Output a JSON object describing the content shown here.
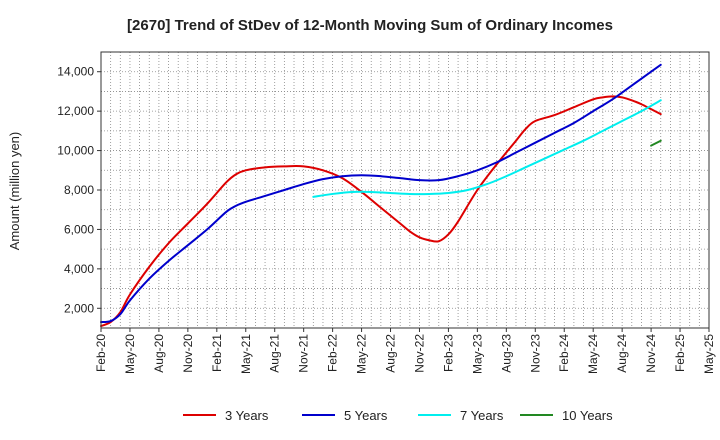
{
  "chart_data": {
    "type": "line",
    "title": "[2670]  Trend of StDev of 12-Month Moving Sum of Ordinary Incomes",
    "xlabel": "",
    "ylabel": "Amount (million yen)",
    "ylim": [
      1000,
      15000
    ],
    "yticks": [
      2000,
      4000,
      6000,
      8000,
      10000,
      12000,
      14000
    ],
    "ytick_labels": [
      "2,000",
      "4,000",
      "6,000",
      "8,000",
      "10,000",
      "12,000",
      "14,000"
    ],
    "x_start": "Feb-20",
    "x_months": 63,
    "xtick_labels": [
      "Feb-20",
      "May-20",
      "Aug-20",
      "Nov-20",
      "Feb-21",
      "May-21",
      "Aug-21",
      "Nov-21",
      "Feb-22",
      "May-22",
      "Aug-22",
      "Nov-22",
      "Feb-23",
      "May-23",
      "Aug-23",
      "Nov-23",
      "Feb-24",
      "May-24",
      "Aug-24",
      "Nov-24",
      "Feb-25",
      "May-25"
    ],
    "grid": true,
    "legend_position": "bottom",
    "series": [
      {
        "name": "3 Years",
        "color": "#dd0000",
        "points": [
          [
            0,
            1100
          ],
          [
            1,
            1300
          ],
          [
            2,
            1800
          ],
          [
            3,
            2700
          ],
          [
            5,
            4100
          ],
          [
            7,
            5300
          ],
          [
            9,
            6300
          ],
          [
            11,
            7300
          ],
          [
            13,
            8400
          ],
          [
            14,
            8800
          ],
          [
            15,
            9000
          ],
          [
            17,
            9150
          ],
          [
            19,
            9200
          ],
          [
            21,
            9200
          ],
          [
            23,
            9000
          ],
          [
            25,
            8600
          ],
          [
            27,
            7900
          ],
          [
            29,
            7100
          ],
          [
            31,
            6300
          ],
          [
            32,
            5900
          ],
          [
            33,
            5600
          ],
          [
            34,
            5450
          ],
          [
            35,
            5400
          ],
          [
            36,
            5750
          ],
          [
            37,
            6400
          ],
          [
            39,
            8000
          ],
          [
            41,
            9300
          ],
          [
            43,
            10500
          ],
          [
            44,
            11100
          ],
          [
            45,
            11500
          ],
          [
            47,
            11800
          ],
          [
            49,
            12200
          ],
          [
            51,
            12600
          ],
          [
            52,
            12700
          ],
          [
            53,
            12750
          ],
          [
            54,
            12700
          ],
          [
            55,
            12550
          ],
          [
            56,
            12350
          ],
          [
            57,
            12100
          ],
          [
            58,
            11850
          ]
        ]
      },
      {
        "name": "5 Years",
        "color": "#0000cc",
        "points": [
          [
            0,
            1300
          ],
          [
            1,
            1350
          ],
          [
            2,
            1700
          ],
          [
            3,
            2400
          ],
          [
            5,
            3500
          ],
          [
            7,
            4400
          ],
          [
            9,
            5200
          ],
          [
            11,
            6000
          ],
          [
            13,
            6900
          ],
          [
            14,
            7200
          ],
          [
            15,
            7400
          ],
          [
            17,
            7700
          ],
          [
            19,
            8000
          ],
          [
            21,
            8300
          ],
          [
            23,
            8550
          ],
          [
            25,
            8700
          ],
          [
            27,
            8750
          ],
          [
            29,
            8700
          ],
          [
            31,
            8600
          ],
          [
            33,
            8500
          ],
          [
            35,
            8500
          ],
          [
            37,
            8700
          ],
          [
            39,
            9000
          ],
          [
            41,
            9400
          ],
          [
            43,
            9900
          ],
          [
            45,
            10400
          ],
          [
            47,
            10900
          ],
          [
            49,
            11400
          ],
          [
            51,
            12000
          ],
          [
            53,
            12600
          ],
          [
            55,
            13300
          ],
          [
            57,
            14000
          ],
          [
            58,
            14350
          ]
        ]
      },
      {
        "name": "7 Years",
        "color": "#00eeee",
        "points": [
          [
            22,
            7650
          ],
          [
            24,
            7800
          ],
          [
            26,
            7900
          ],
          [
            28,
            7900
          ],
          [
            30,
            7850
          ],
          [
            32,
            7800
          ],
          [
            34,
            7800
          ],
          [
            36,
            7850
          ],
          [
            38,
            8000
          ],
          [
            40,
            8300
          ],
          [
            42,
            8700
          ],
          [
            44,
            9150
          ],
          [
            46,
            9600
          ],
          [
            48,
            10050
          ],
          [
            50,
            10500
          ],
          [
            52,
            11000
          ],
          [
            54,
            11500
          ],
          [
            56,
            12000
          ],
          [
            58,
            12550
          ]
        ]
      },
      {
        "name": "10 Years",
        "color": "#228822",
        "points": [
          [
            57,
            10250
          ],
          [
            58,
            10500
          ]
        ]
      }
    ]
  }
}
